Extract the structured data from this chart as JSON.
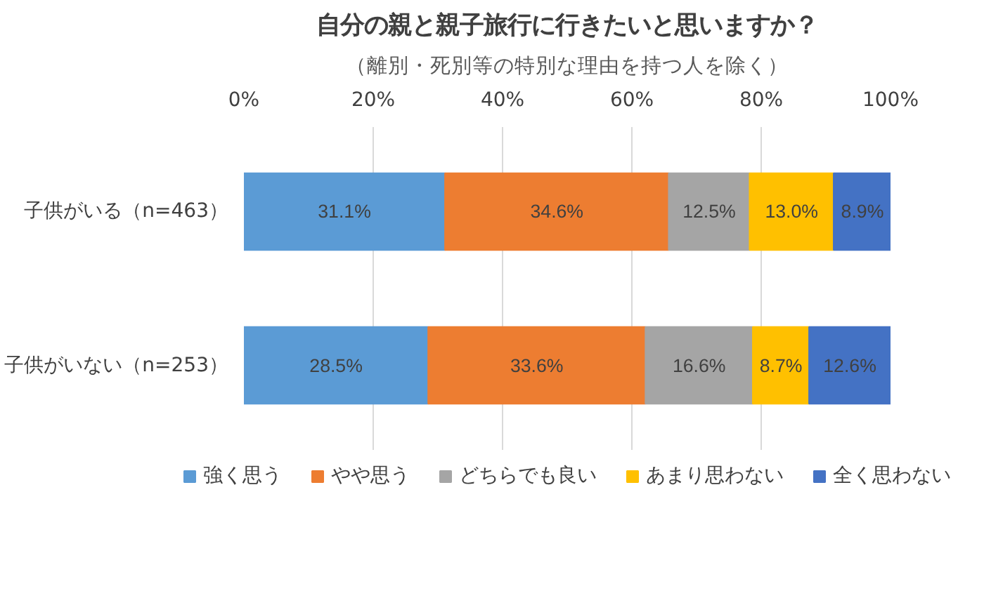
{
  "chart_data": {
    "type": "bar",
    "orientation": "horizontal",
    "stacked": true,
    "title": "自分の親と親子旅行に行きたいと思いますか？",
    "subtitle": "（離別・死別等の特別な理由を持つ人を除く）",
    "categories": [
      "子供がいる（n=463）",
      "子供がいない（n=253）"
    ],
    "series": [
      {
        "name": "強く思う",
        "color": "#5b9bd5",
        "values": [
          31.1,
          28.5
        ],
        "value_labels": [
          "31.1%",
          "28.5%"
        ]
      },
      {
        "name": "やや思う",
        "color": "#ed7d31",
        "values": [
          34.6,
          33.6
        ],
        "value_labels": [
          "34.6%",
          "33.6%"
        ]
      },
      {
        "name": "どちらでも良い",
        "color": "#a5a5a5",
        "values": [
          12.5,
          16.6
        ],
        "value_labels": [
          "12.5%",
          "16.6%"
        ]
      },
      {
        "name": "あまり思わない",
        "color": "#ffc000",
        "values": [
          13.0,
          8.7
        ],
        "value_labels": [
          "13.0%",
          "8.7%"
        ]
      },
      {
        "name": "全く思わない",
        "color": "#4472c4",
        "values": [
          8.9,
          12.6
        ],
        "value_labels": [
          "8.9%",
          "12.6%"
        ]
      }
    ],
    "xlim": [
      0,
      100
    ],
    "xticks": [
      {
        "value": 0,
        "label": "0%"
      },
      {
        "value": 20,
        "label": "20%"
      },
      {
        "value": 40,
        "label": "40%"
      },
      {
        "value": 60,
        "label": "60%"
      },
      {
        "value": 80,
        "label": "80%"
      },
      {
        "value": 100,
        "label": "100%"
      }
    ],
    "grid": "x",
    "legend": "bottom"
  }
}
